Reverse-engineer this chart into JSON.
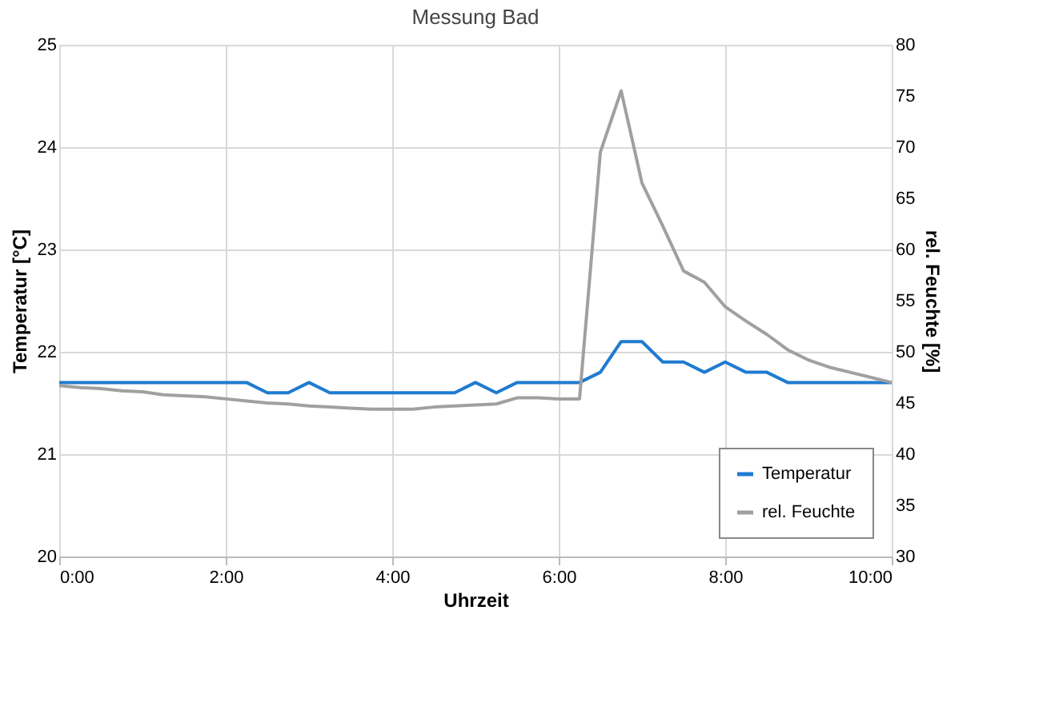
{
  "chart_data": {
    "type": "line",
    "title": "Messung Bad",
    "xlabel": "Uhrzeit",
    "ylabel": "Temperatur [°C]",
    "y2label": "rel. Feuchte [%]",
    "x": [
      0,
      0.25,
      0.5,
      0.75,
      1,
      1.25,
      1.5,
      1.75,
      2,
      2.25,
      2.5,
      2.75,
      3,
      3.25,
      3.5,
      3.75,
      4,
      4.25,
      4.5,
      4.75,
      5,
      5.25,
      5.5,
      5.75,
      6,
      6.25,
      6.5,
      6.75,
      7,
      7.25,
      7.5,
      7.75,
      8,
      8.25,
      8.5,
      8.75,
      9,
      9.25,
      9.5,
      9.75,
      10
    ],
    "series": [
      {
        "name": "Temperatur",
        "color": "#1f7bd0",
        "values": [
          21.7,
          21.7,
          21.7,
          21.7,
          21.7,
          21.7,
          21.7,
          21.7,
          21.7,
          21.7,
          21.6,
          21.6,
          21.7,
          21.6,
          21.6,
          21.6,
          21.6,
          21.6,
          21.6,
          21.6,
          21.7,
          21.6,
          21.7,
          21.7,
          21.7,
          21.7,
          21.8,
          22.1,
          22.1,
          21.9,
          21.9,
          21.8,
          21.9,
          21.8,
          21.8,
          21.7,
          21.7,
          21.7,
          21.7,
          21.7,
          21.7
        ]
      },
      {
        "name": "rel. Feuchte",
        "color": "#a0a0a0",
        "axis": "y2",
        "values": [
          46.7,
          46.5,
          46.4,
          46.2,
          46.1,
          45.8,
          45.7,
          45.6,
          45.4,
          45.2,
          45.0,
          44.9,
          44.7,
          44.6,
          44.5,
          44.4,
          44.4,
          44.4,
          44.6,
          44.7,
          44.8,
          44.9,
          45.5,
          45.5,
          45.4,
          45.4,
          69.5,
          75.5,
          66.5,
          62.3,
          57.9,
          56.8,
          54.4,
          53.0,
          51.7,
          50.2,
          49.2,
          48.5,
          48.0,
          47.5,
          47.0
        ]
      }
    ],
    "xlim": [
      0,
      10
    ],
    "xticks": [
      {
        "value": 0,
        "label": "0:00"
      },
      {
        "value": 2,
        "label": "2:00"
      },
      {
        "value": 4,
        "label": "4:00"
      },
      {
        "value": 6,
        "label": "6:00"
      },
      {
        "value": 8,
        "label": "8:00"
      },
      {
        "value": 10,
        "label": "10:00"
      }
    ],
    "ylim": [
      20,
      25
    ],
    "yticks": [
      20,
      21,
      22,
      23,
      24,
      25
    ],
    "y2lim": [
      30,
      80
    ],
    "y2ticks": [
      30,
      35,
      40,
      45,
      50,
      55,
      60,
      65,
      70,
      75,
      80
    ],
    "grid": true,
    "legend": "bottom right",
    "marker": "none",
    "line_style": "solid"
  }
}
